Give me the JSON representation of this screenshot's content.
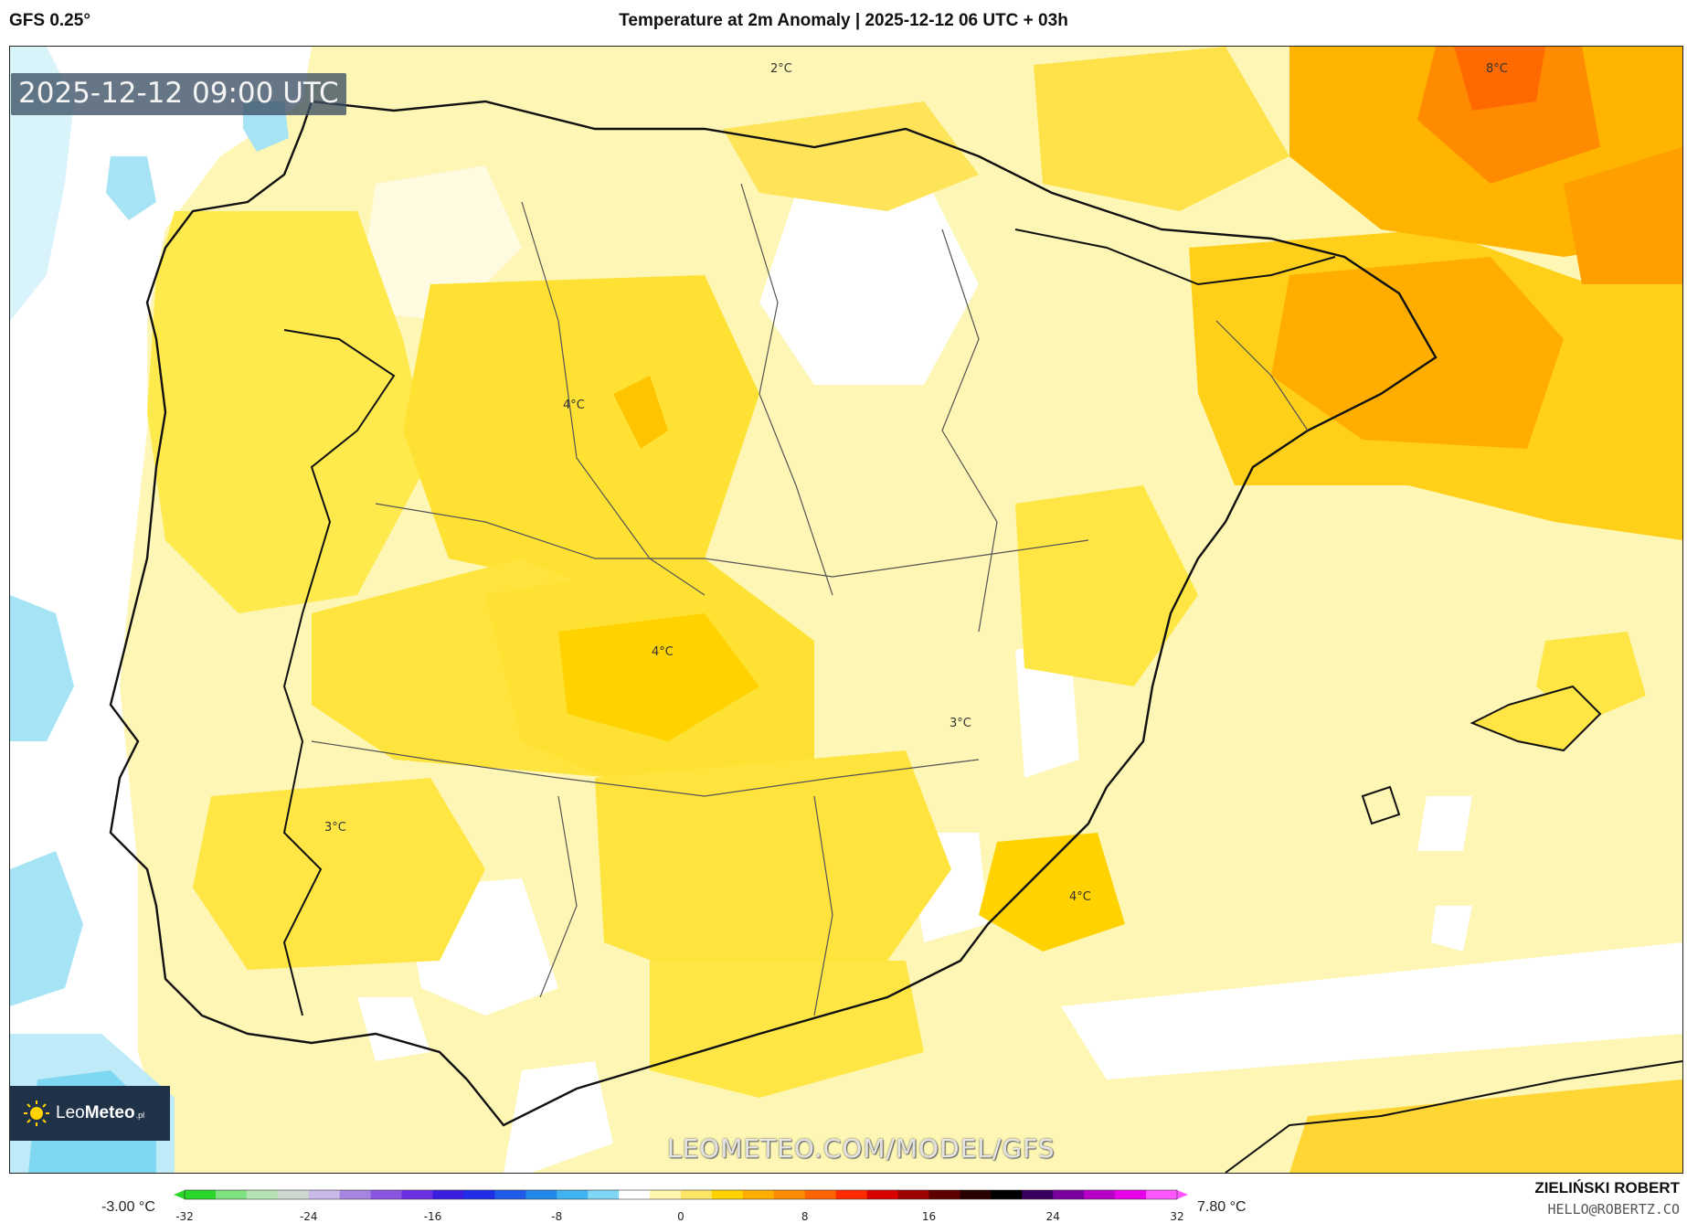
{
  "header": {
    "model": "GFS 0.25°",
    "title": "Temperature at 2m Anomaly | 2025-12-12 06 UTC + 03h"
  },
  "map": {
    "timestamp": "2025-12-12 09:00 UTC",
    "watermark": "LEOMETEO.COM/MODEL/GFS",
    "labels": [
      "2°C",
      "8°C",
      "4°C",
      "4°C",
      "3°C",
      "3°C",
      "4°C"
    ]
  },
  "logo": {
    "text_regular": "Leo",
    "text_bold": "Meteo",
    "suffix": ".pl"
  },
  "colorbar": {
    "min_label": "-3.00 °C",
    "max_label": "7.80 °C",
    "ticks": [
      "-32",
      "-24",
      "-16",
      "-8",
      "0",
      "8",
      "16",
      "24",
      "32"
    ],
    "colors": [
      "#2bd62b",
      "#7fe07f",
      "#b5e3b5",
      "#cfd8cf",
      "#c9b8e8",
      "#a585e0",
      "#8a55e0",
      "#6b2ee0",
      "#3b1fe0",
      "#1f2fe8",
      "#1f5ae8",
      "#1f88e8",
      "#3fb4f0",
      "#7fd6f5",
      "#ffffff",
      "#fff6b0",
      "#ffe566",
      "#ffd200",
      "#ffae00",
      "#ff8c00",
      "#ff6400",
      "#ff2a00",
      "#d90000",
      "#9c0000",
      "#5c0000",
      "#280000",
      "#000000",
      "#3a0060",
      "#7a00a0",
      "#b800c8",
      "#e800e8",
      "#ff55ff"
    ]
  },
  "footer": {
    "author": "ZIELIŃSKI ROBERT",
    "email": "HELLO@ROBERTZ.CO"
  }
}
